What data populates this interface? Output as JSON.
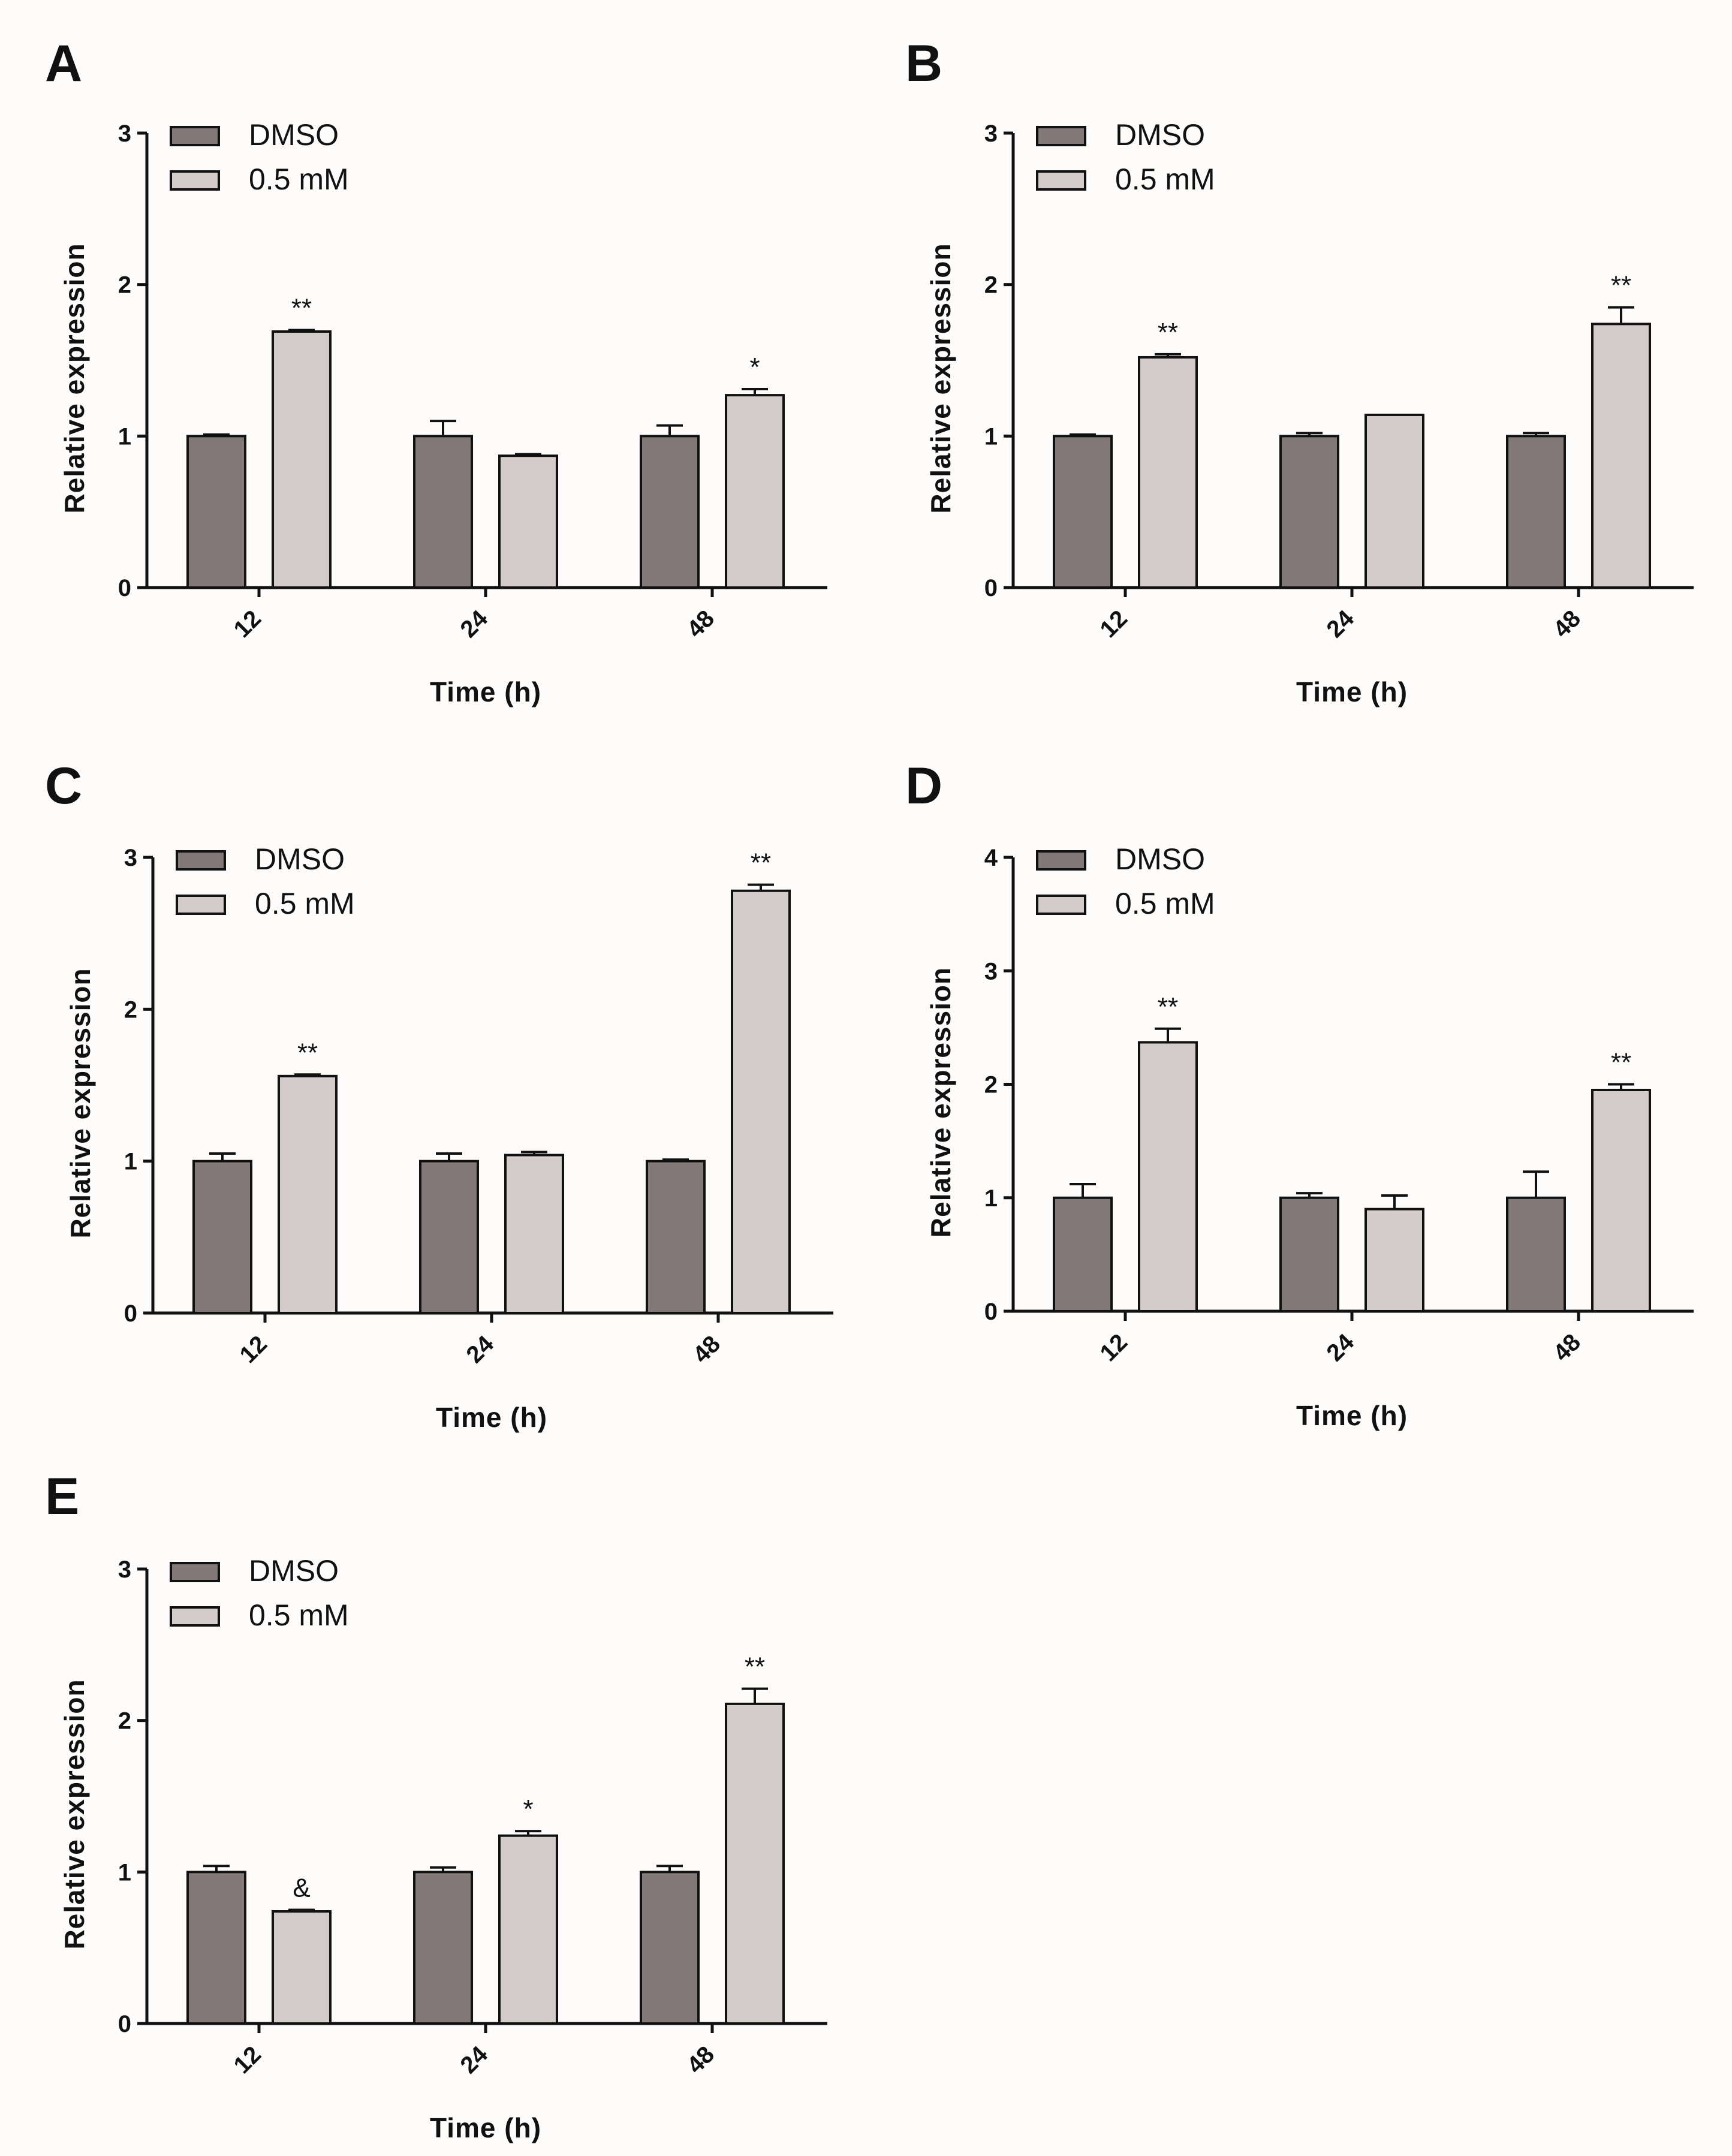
{
  "colors": {
    "dmso": "#827878",
    "treated": "#d4cccb",
    "stroke": "#111111",
    "background": "#fdfcfa"
  },
  "legend": {
    "dmso": "DMSO",
    "treated": "0.5 mM"
  },
  "chart_data": [
    {
      "type": "bar",
      "panel": "A",
      "xlabel": "Time (h)",
      "ylabel": "Relative expression",
      "categories": [
        "12",
        "24",
        "48"
      ],
      "ylim": [
        0,
        3
      ],
      "yticks": [
        "0",
        "1",
        "2",
        "3"
      ],
      "series": [
        {
          "name": "DMSO",
          "values": [
            1.0,
            1.0,
            1.0
          ],
          "errors": [
            0.01,
            0.1,
            0.07
          ],
          "sig": [
            "",
            "",
            ""
          ]
        },
        {
          "name": "0.5 mM",
          "values": [
            1.69,
            0.87,
            1.27
          ],
          "errors": [
            0.01,
            0.01,
            0.04
          ],
          "sig": [
            "**",
            "",
            "*"
          ]
        }
      ]
    },
    {
      "type": "bar",
      "panel": "B",
      "xlabel": "Time (h)",
      "ylabel": "Relative expression",
      "categories": [
        "12",
        "24",
        "48"
      ],
      "ylim": [
        0,
        3
      ],
      "yticks": [
        "0",
        "1",
        "2",
        "3"
      ],
      "series": [
        {
          "name": "DMSO",
          "values": [
            1.0,
            1.0,
            1.0
          ],
          "errors": [
            0.01,
            0.02,
            0.02
          ],
          "sig": [
            "",
            "",
            ""
          ]
        },
        {
          "name": "0.5 mM",
          "values": [
            1.52,
            1.14,
            1.74
          ],
          "errors": [
            0.02,
            0.0,
            0.11
          ],
          "sig": [
            "**",
            "",
            "**"
          ]
        }
      ]
    },
    {
      "type": "bar",
      "panel": "C",
      "xlabel": "Time (h)",
      "ylabel": "Relative expression",
      "categories": [
        "12",
        "24",
        "48"
      ],
      "ylim": [
        0,
        3
      ],
      "yticks": [
        "0",
        "1",
        "2",
        "3"
      ],
      "series": [
        {
          "name": "DMSO",
          "values": [
            1.0,
            1.0,
            1.0
          ],
          "errors": [
            0.05,
            0.05,
            0.01
          ],
          "sig": [
            "",
            "",
            ""
          ]
        },
        {
          "name": "0.5 mM",
          "values": [
            1.56,
            1.04,
            2.78
          ],
          "errors": [
            0.01,
            0.02,
            0.04
          ],
          "sig": [
            "**",
            "",
            "**"
          ]
        }
      ]
    },
    {
      "type": "bar",
      "panel": "D",
      "xlabel": "Time (h)",
      "ylabel": "Relative expression",
      "categories": [
        "12",
        "24",
        "48"
      ],
      "ylim": [
        0,
        4
      ],
      "yticks": [
        "0",
        "1",
        "2",
        "3",
        "4"
      ],
      "series": [
        {
          "name": "DMSO",
          "values": [
            1.0,
            1.0,
            1.0
          ],
          "errors": [
            0.12,
            0.04,
            0.23
          ],
          "sig": [
            "",
            "",
            ""
          ]
        },
        {
          "name": "0.5 mM",
          "values": [
            2.37,
            0.9,
            1.95
          ],
          "errors": [
            0.12,
            0.12,
            0.05
          ],
          "sig": [
            "**",
            "",
            "**"
          ]
        }
      ]
    },
    {
      "type": "bar",
      "panel": "E",
      "xlabel": "Time (h)",
      "ylabel": "Relative expression",
      "categories": [
        "12",
        "24",
        "48"
      ],
      "ylim": [
        0,
        3
      ],
      "yticks": [
        "0",
        "1",
        "2",
        "3"
      ],
      "series": [
        {
          "name": "DMSO",
          "values": [
            1.0,
            1.0,
            1.0
          ],
          "errors": [
            0.04,
            0.03,
            0.04
          ],
          "sig": [
            "",
            "",
            ""
          ]
        },
        {
          "name": "0.5 mM",
          "values": [
            0.74,
            1.24,
            2.11
          ],
          "errors": [
            0.01,
            0.03,
            0.1
          ],
          "sig": [
            "&",
            "*",
            "**"
          ]
        }
      ]
    }
  ]
}
